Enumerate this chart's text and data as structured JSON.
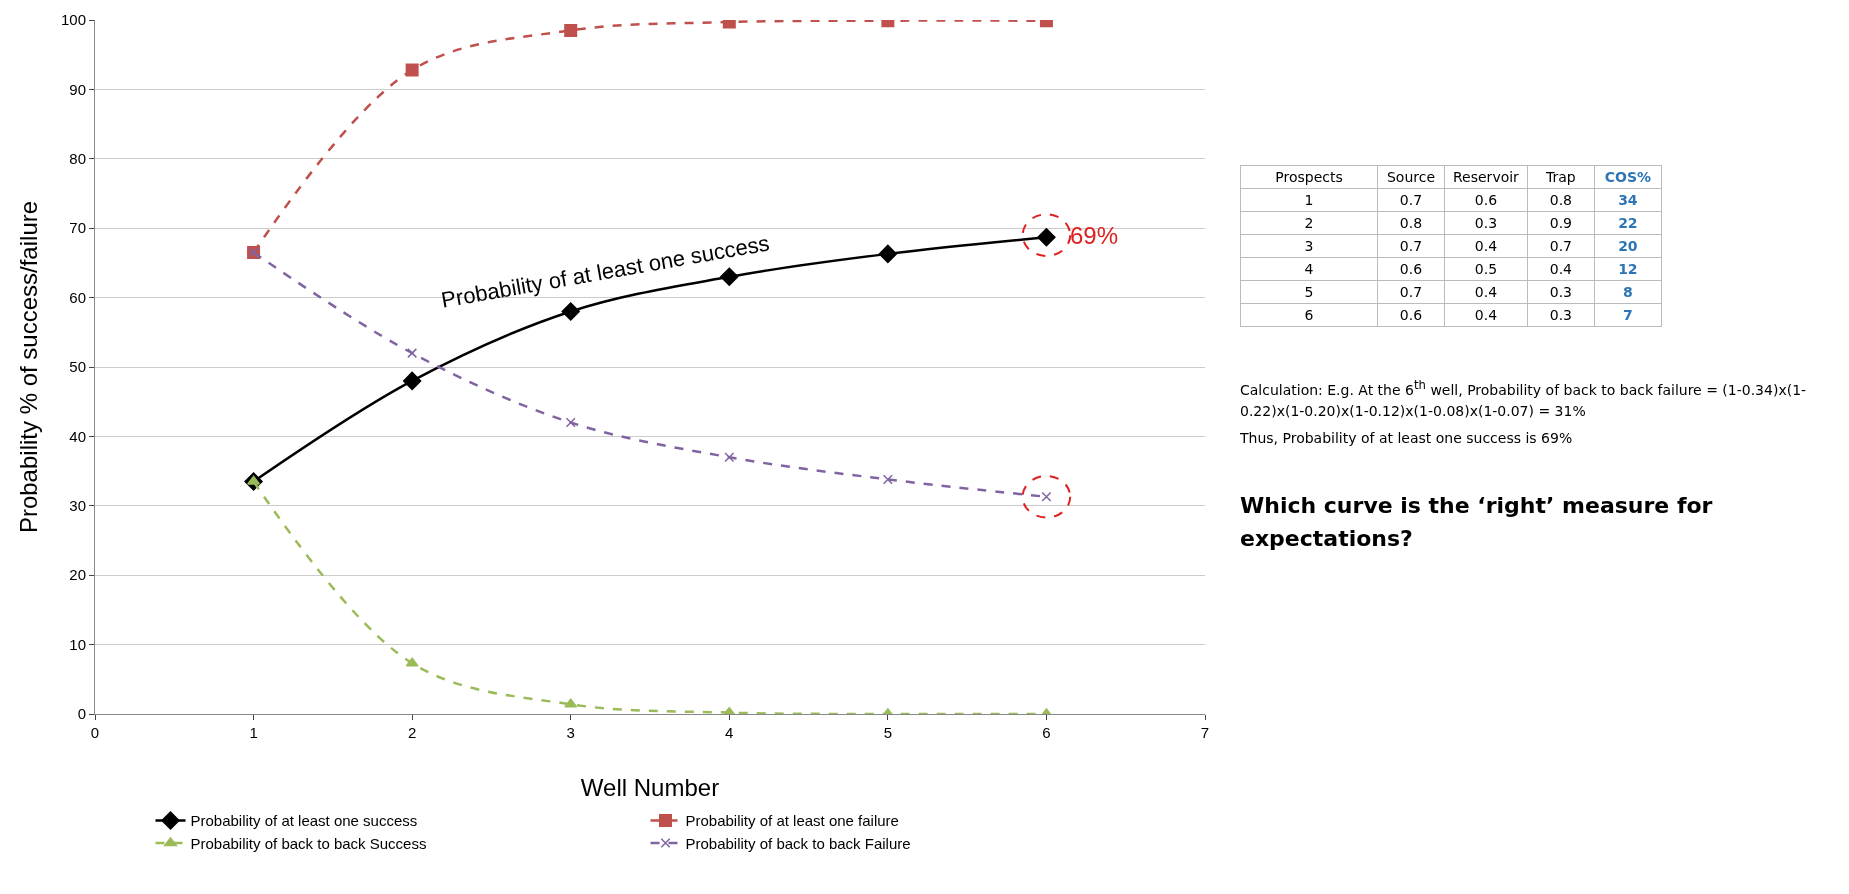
{
  "chart_data": [
    {
      "type": "line",
      "xlabel": "Well Number",
      "ylabel": "Probability % of success/failure",
      "x": [
        1,
        2,
        3,
        4,
        5,
        6
      ],
      "series": [
        {
          "name": "Probability of at least one success",
          "color": "#000000",
          "marker": "diamond",
          "line_style": "solid",
          "values": [
            33.5,
            48,
            58,
            63,
            66.3,
            68.7
          ]
        },
        {
          "name": "Probability of at least one failure",
          "color": "#c0504d",
          "marker": "square",
          "line_style": "dashed",
          "values": [
            66.5,
            92.8,
            98.5,
            99.7,
            99.9,
            99.9
          ]
        },
        {
          "name": "Probability of back to back Success",
          "color": "#9bbb59",
          "marker": "triangle",
          "line_style": "dashed",
          "values": [
            33.5,
            7.3,
            1.4,
            0.2,
            0,
            0
          ]
        },
        {
          "name": "Probability of back to back Failure",
          "color": "#8064a2",
          "marker": "cross",
          "line_style": "dashed",
          "values": [
            66.5,
            52,
            42,
            37,
            33.8,
            31.3
          ]
        }
      ],
      "xlim": [
        0,
        7
      ],
      "xticks": [
        0,
        1,
        2,
        3,
        4,
        5,
        6,
        7
      ],
      "ylim": [
        0,
        100
      ],
      "yticks": [
        0,
        10,
        20,
        30,
        40,
        50,
        60,
        70,
        80,
        90,
        100
      ],
      "grid": "y",
      "legend": "bottom",
      "annotations": [
        "Probability of at least one success",
        {
          "text": "69%",
          "x": 6,
          "y": 69
        }
      ]
    },
    {
      "type": "heatmap",
      "ylabel": "Prospects",
      "categories": [
        "Source",
        "Reservoir",
        "Trap",
        "COS%"
      ],
      "y_categories": [
        "1",
        "2",
        "3",
        "4",
        "5",
        "6"
      ],
      "cells": [
        [
          0.7,
          0.6,
          0.8,
          34
        ],
        [
          0.8,
          0.3,
          0.9,
          22
        ],
        [
          0.7,
          0.4,
          0.7,
          20
        ],
        [
          0.6,
          0.5,
          0.4,
          12
        ],
        [
          0.7,
          0.4,
          0.3,
          8
        ],
        [
          0.6,
          0.4,
          0.3,
          7
        ]
      ],
      "cell_labels": [
        [
          "0.7",
          "0.6",
          "0.8",
          "34"
        ],
        [
          "0.8",
          "0.3",
          "0.9",
          "22"
        ],
        [
          "0.7",
          "0.4",
          "0.7",
          "20"
        ],
        [
          "0.6",
          "0.5",
          "0.4",
          "12"
        ],
        [
          "0.7",
          "0.4",
          "0.3",
          "8"
        ],
        [
          "0.6",
          "0.4",
          "0.3",
          "7"
        ]
      ],
      "annotations": [
        "Calculation: E.g. At the 6$^{th}$ well, Probability of back to back failure = (1-0.34)x(1-0.22)x(1-0.20)x(1-0.12)x(1-0.08)x(1-0.07) = 31%",
        "Thus, Probability of at least one success is 69%",
        "Which curve is the ‘right’ measure for expectations?"
      ]
    }
  ]
}
